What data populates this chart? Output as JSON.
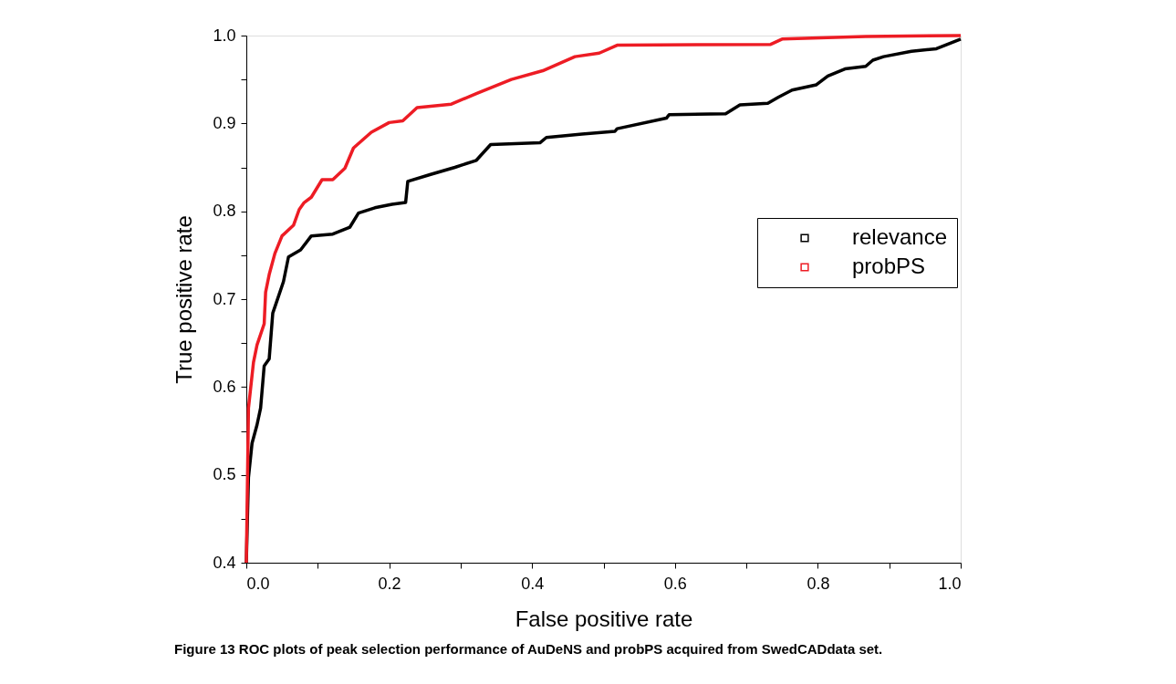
{
  "chart_data": {
    "type": "line",
    "xlabel": "False positive rate",
    "ylabel": "True positive rate",
    "xlim": [
      0,
      1
    ],
    "ylim": [
      0.4,
      1.0
    ],
    "xticks": [
      {
        "value": 0.0,
        "label": "0.0"
      },
      {
        "value": 0.1,
        "label": null
      },
      {
        "value": 0.2,
        "label": "0.2"
      },
      {
        "value": 0.3,
        "label": null
      },
      {
        "value": 0.4,
        "label": "0.4"
      },
      {
        "value": 0.5,
        "label": null
      },
      {
        "value": 0.6,
        "label": "0.6"
      },
      {
        "value": 0.7,
        "label": null
      },
      {
        "value": 0.8,
        "label": "0.8"
      },
      {
        "value": 0.9,
        "label": null
      },
      {
        "value": 1.0,
        "label": "1.0"
      }
    ],
    "yticks": [
      {
        "value": 0.4,
        "label": "0.4"
      },
      {
        "value": 0.45,
        "label": null
      },
      {
        "value": 0.5,
        "label": "0.5"
      },
      {
        "value": 0.55,
        "label": null
      },
      {
        "value": 0.6,
        "label": "0.6"
      },
      {
        "value": 0.65,
        "label": null
      },
      {
        "value": 0.7,
        "label": "0.7"
      },
      {
        "value": 0.75,
        "label": null
      },
      {
        "value": 0.8,
        "label": "0.8"
      },
      {
        "value": 0.85,
        "label": null
      },
      {
        "value": 0.9,
        "label": "0.9"
      },
      {
        "value": 0.95,
        "label": null
      },
      {
        "value": 1.0,
        "label": "1.0"
      }
    ],
    "grid": false,
    "legend": "right",
    "line_style": "solid",
    "annotations": [
      "Figure 13 ROC plots of peak selection performance of AuDeNS and probPS acquired from SwedCADdata set."
    ],
    "series": [
      {
        "name": "relevance",
        "color": "#000000",
        "x": [
          0,
          0.003,
          0.008,
          0.015,
          0.02,
          0.025,
          0.032,
          0.037,
          0.042,
          0.052,
          0.059,
          0.076,
          0.091,
          0.121,
          0.145,
          0.157,
          0.18,
          0.204,
          0.223,
          0.226,
          0.258,
          0.292,
          0.322,
          0.342,
          0.411,
          0.42,
          0.47,
          0.516,
          0.519,
          0.588,
          0.592,
          0.671,
          0.691,
          0.73,
          0.745,
          0.764,
          0.798,
          0.814,
          0.838,
          0.867,
          0.877,
          0.892,
          0.931,
          0.966,
          1.0
        ],
        "values": [
          0.4,
          0.497,
          0.536,
          0.557,
          0.576,
          0.624,
          0.632,
          0.684,
          0.696,
          0.72,
          0.748,
          0.756,
          0.772,
          0.774,
          0.782,
          0.798,
          0.804,
          0.808,
          0.81,
          0.834,
          0.842,
          0.85,
          0.858,
          0.876,
          0.878,
          0.884,
          0.888,
          0.891,
          0.894,
          0.906,
          0.91,
          0.911,
          0.921,
          0.923,
          0.93,
          0.938,
          0.944,
          0.954,
          0.962,
          0.965,
          0.972,
          0.976,
          0.982,
          0.985,
          0.996
        ]
      },
      {
        "name": "probPS",
        "color": "#ed1c24",
        "x": [
          0,
          0.003,
          0.01,
          0.015,
          0.025,
          0.027,
          0.032,
          0.04,
          0.05,
          0.066,
          0.074,
          0.081,
          0.091,
          0.106,
          0.121,
          0.138,
          0.15,
          0.175,
          0.2,
          0.219,
          0.239,
          0.287,
          0.322,
          0.371,
          0.415,
          0.46,
          0.494,
          0.519,
          0.734,
          0.75,
          0.867,
          1.0
        ],
        "values": [
          0.4,
          0.576,
          0.628,
          0.648,
          0.672,
          0.708,
          0.728,
          0.752,
          0.772,
          0.784,
          0.802,
          0.81,
          0.816,
          0.836,
          0.836,
          0.849,
          0.872,
          0.89,
          0.901,
          0.903,
          0.918,
          0.922,
          0.934,
          0.95,
          0.96,
          0.976,
          0.98,
          0.989,
          0.99,
          0.996,
          0.999,
          1.0
        ]
      }
    ]
  }
}
